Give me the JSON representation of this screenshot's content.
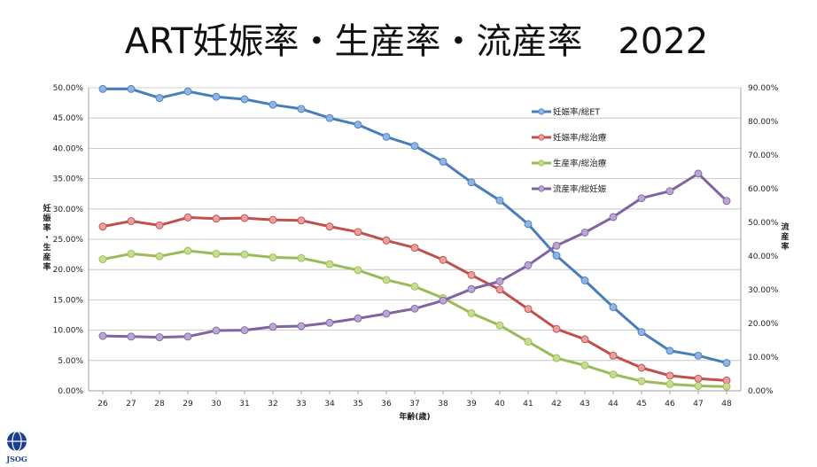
{
  "slide": {
    "logo_text": "JSOG"
  },
  "chart_data": {
    "type": "line",
    "title": "ART妊娠率・生産率・流産率　2022",
    "xlabel": "年齢(歳)",
    "ylabel_left_lines": [
      "妊",
      "娠",
      "率",
      "・",
      "生",
      "産",
      "率"
    ],
    "ylabel_right_lines": [
      "流",
      "産",
      "率"
    ],
    "categories": [
      "26",
      "27",
      "28",
      "29",
      "30",
      "31",
      "32",
      "33",
      "34",
      "35",
      "36",
      "37",
      "38",
      "39",
      "40",
      "41",
      "42",
      "43",
      "44",
      "45",
      "46",
      "47",
      "48"
    ],
    "ylim_left": [
      0,
      50
    ],
    "ylim_right": [
      0,
      90
    ],
    "left_ticks": [
      "0.00%",
      "5.00%",
      "10.00%",
      "15.00%",
      "20.00%",
      "25.00%",
      "30.00%",
      "35.00%",
      "40.00%",
      "45.00%",
      "50.00%"
    ],
    "right_ticks": [
      "0.00%",
      "10.00%",
      "20.00%",
      "30.00%",
      "40.00%",
      "50.00%",
      "60.00%",
      "70.00%",
      "80.00%",
      "90.00%"
    ],
    "grid": true,
    "legend_position": "inside-right",
    "series": [
      {
        "name": "妊娠率/総ET",
        "axis": "left",
        "color": "#4a7ebb",
        "marker": "#8eb4e3",
        "values": [
          49.8,
          49.8,
          48.3,
          49.4,
          48.5,
          48.1,
          47.2,
          46.5,
          45.0,
          43.9,
          41.9,
          40.4,
          37.8,
          34.4,
          31.4,
          27.5,
          22.3,
          18.2,
          13.8,
          9.7,
          6.6,
          5.8,
          4.6
        ]
      },
      {
        "name": "妊娠率/総治療",
        "axis": "left",
        "color": "#c0504d",
        "marker": "#e6a09e",
        "values": [
          27.1,
          28.0,
          27.3,
          28.6,
          28.4,
          28.5,
          28.2,
          28.1,
          27.1,
          26.2,
          24.8,
          23.6,
          21.6,
          19.1,
          16.7,
          13.5,
          10.2,
          8.5,
          5.8,
          3.8,
          2.5,
          2.0,
          1.7
        ]
      },
      {
        "name": "生産率/総治療",
        "axis": "left",
        "color": "#9bbb59",
        "marker": "#c8dc8f",
        "values": [
          21.7,
          22.6,
          22.2,
          23.1,
          22.6,
          22.5,
          22.0,
          21.9,
          20.9,
          19.9,
          18.3,
          17.2,
          15.3,
          12.8,
          10.8,
          8.1,
          5.4,
          4.2,
          2.7,
          1.6,
          1.1,
          0.8,
          0.7
        ]
      },
      {
        "name": "流産率/総妊娠",
        "axis": "right",
        "color": "#8064a2",
        "marker": "#b9a6d2",
        "values": [
          16.3,
          16.1,
          15.9,
          16.1,
          17.9,
          18.0,
          19.0,
          19.2,
          20.2,
          21.5,
          22.9,
          24.4,
          26.8,
          30.2,
          32.5,
          37.3,
          43.1,
          47.0,
          51.6,
          57.2,
          59.3,
          64.5,
          56.4
        ]
      }
    ]
  }
}
